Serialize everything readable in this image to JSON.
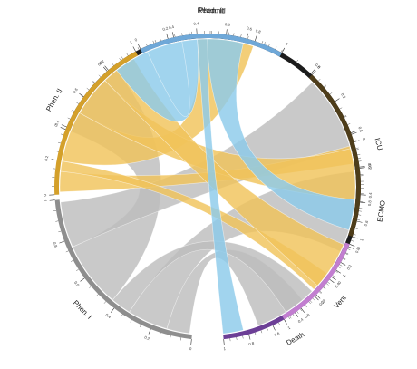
{
  "chart_data": {
    "type": "chord",
    "segments": [
      {
        "name": "Readmit",
        "color": "#1c1c1c",
        "start_deg": 292,
        "end_deg": 430
      },
      {
        "name": "ECMO",
        "color": "#1c1c1c",
        "start_deg": 433,
        "end_deg": 483
      },
      {
        "name": "Death",
        "color": "#6c3f96",
        "start_deg": 486,
        "end_deg": 534
      },
      {
        "name": "Phen. I",
        "color": "#8e8e8e",
        "start_deg": 546,
        "end_deg": 625
      },
      {
        "name": "Phen. II",
        "color": "#d4a02a",
        "start_deg": 627,
        "end_deg": 692
      },
      {
        "name": "Phen. III",
        "color": "#6fa8d8",
        "start_deg": 694,
        "end_deg": 749
      },
      {
        "name": "ICU",
        "color": "#4e3d1a",
        "start_deg": 763,
        "end_deg": 829
      },
      {
        "name": "Vent",
        "color": "#c27ed0",
        "start_deg": 832,
        "end_deg": 870
      }
    ],
    "tick_values": [
      "0",
      "0.2",
      "0.4",
      "0.6",
      "0.8",
      "1"
    ],
    "ribbon_colors": {
      "phen_i": "#bdbdbd",
      "phen_ii": "#f0c35a",
      "phen_iii": "#8ccaea"
    },
    "ribbons": [
      {
        "from": "Phen. I",
        "to": "Readmit",
        "from_range": [
          580,
          606
        ],
        "to_range": [
          292,
          322
        ]
      },
      {
        "from": "Phen. I",
        "to": "ECMO",
        "from_range": [
          556,
          572
        ],
        "to_range": [
          444,
          476
        ]
      },
      {
        "from": "Phen. I",
        "to": "Death",
        "from_range": [
          547,
          556
        ],
        "to_range": [
          500,
          520
        ]
      },
      {
        "from": "Phen. I",
        "to": "ICU",
        "from_range": [
          606,
          624
        ],
        "to_range": [
          765,
          795
        ]
      },
      {
        "from": "Phen. I",
        "to": "Vent",
        "from_range": [
          572,
          580
        ],
        "to_range": [
          855,
          868
        ]
      },
      {
        "from": "Phen. II",
        "to": "Readmit",
        "from_range": [
          640,
          660
        ],
        "to_range": [
          356,
          378
        ]
      },
      {
        "from": "Phen. II",
        "to": "ECMO",
        "from_range": [
          628,
          636
        ],
        "to_range": [
          434,
          441
        ]
      },
      {
        "from": "Phen. II",
        "to": "Death",
        "from_range": [
          636,
          640
        ],
        "to_range": [
          486,
          494
        ]
      },
      {
        "from": "Phen. II",
        "to": "ICU",
        "from_range": [
          660,
          676
        ],
        "to_range": [
          795,
          815
        ]
      },
      {
        "from": "Phen. II",
        "to": "Vent",
        "from_range": [
          676,
          690
        ],
        "to_range": [
          833,
          852
        ]
      },
      {
        "from": "Phen. III",
        "to": "Readmit",
        "from_range": [
          696,
          716
        ],
        "to_range": [
          322,
          350
        ]
      },
      {
        "from": "Phen. III",
        "to": "Death",
        "from_range": [
          716,
          720
        ],
        "to_range": [
          526,
          534
        ]
      },
      {
        "from": "Phen. III",
        "to": "ICU",
        "from_range": [
          720,
          734
        ],
        "to_range": [
          815,
          827
        ]
      }
    ]
  }
}
